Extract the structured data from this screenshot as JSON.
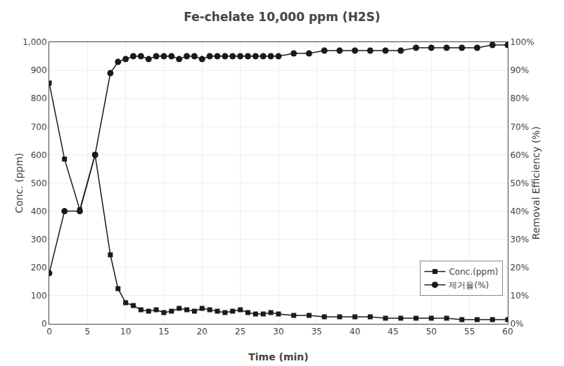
{
  "chart_data": {
    "type": "line",
    "title": "Fe-chelate 10,000 ppm (H2S)",
    "x_label": "Time (min)",
    "y_label": "Conc. (ppm)",
    "y2_label": "Removal Efficiency (%)",
    "x": [
      0,
      2,
      4,
      6,
      8,
      9,
      10,
      11,
      12,
      13,
      14,
      15,
      16,
      17,
      18,
      19,
      20,
      21,
      22,
      23,
      24,
      25,
      26,
      27,
      28,
      29,
      30,
      32,
      34,
      36,
      38,
      40,
      42,
      44,
      46,
      48,
      50,
      52,
      54,
      56,
      58,
      60
    ],
    "series": [
      {
        "name": "Conc.(ppm)",
        "color": "#1a1a1a",
        "marker": "square",
        "values": [
          855,
          585,
          405,
          600,
          245,
          125,
          75,
          65,
          50,
          45,
          50,
          40,
          45,
          55,
          50,
          45,
          55,
          50,
          45,
          40,
          45,
          50,
          40,
          35,
          35,
          40,
          35,
          30,
          30,
          25,
          25,
          25,
          25,
          20,
          20,
          20,
          20,
          20,
          15,
          15,
          15,
          15
        ]
      },
      {
        "name": "제거율(%)",
        "color": "#1a1a1a",
        "marker": "circle",
        "axis": "y2",
        "values": [
          18,
          40,
          40,
          60,
          89,
          93,
          94,
          95,
          95,
          94,
          95,
          95,
          95,
          94,
          95,
          95,
          94,
          95,
          95,
          95,
          95,
          95,
          95,
          95,
          95,
          95,
          95,
          96,
          96,
          97,
          97,
          97,
          97,
          97,
          97,
          98,
          98,
          98,
          98,
          98,
          99,
          99
        ]
      }
    ],
    "xlim": [
      0,
      60
    ],
    "xticks": [
      0,
      5,
      10,
      15,
      20,
      25,
      30,
      35,
      40,
      45,
      50,
      55,
      60
    ],
    "ylim": [
      0,
      1000
    ],
    "yticks": [
      0,
      100,
      200,
      300,
      400,
      500,
      600,
      700,
      800,
      900,
      {
        "value": 1000,
        "label": "1,000"
      }
    ],
    "y2lim": [
      0,
      100
    ],
    "y2ticks": [
      {
        "value": 0,
        "label": "0%"
      },
      {
        "value": 10,
        "label": "10%"
      },
      {
        "value": 20,
        "label": "20%"
      },
      {
        "value": 30,
        "label": "30%"
      },
      {
        "value": 40,
        "label": "40%"
      },
      {
        "value": 50,
        "label": "50%"
      },
      {
        "value": 60,
        "label": "60%"
      },
      {
        "value": 70,
        "label": "70%"
      },
      {
        "value": 80,
        "label": "80%"
      },
      {
        "value": 90,
        "label": "90%"
      },
      {
        "value": 100,
        "label": "100%"
      }
    ],
    "grid": true,
    "legend": "lower right"
  }
}
